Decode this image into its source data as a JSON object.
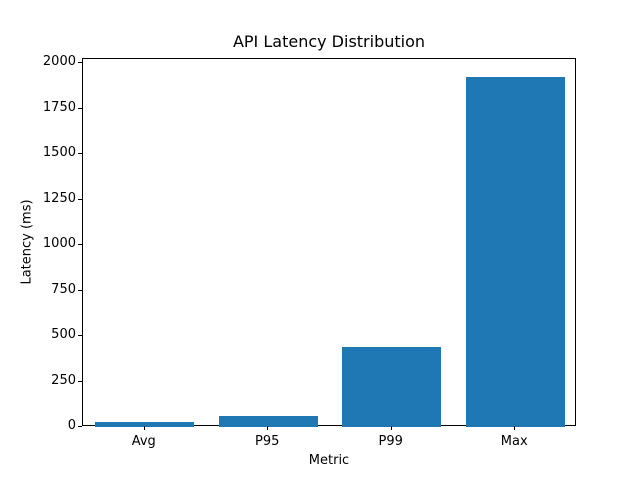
{
  "chart_data": {
    "type": "bar",
    "title": "API Latency Distribution",
    "xlabel": "Metric",
    "ylabel": "Latency (ms)",
    "categories": [
      "Avg",
      "P95",
      "P99",
      "Max"
    ],
    "values": [
      25,
      60,
      440,
      1925
    ],
    "ylim": [
      0,
      2022
    ],
    "yticks": [
      0,
      250,
      500,
      750,
      1000,
      1250,
      1500,
      1750,
      2000
    ],
    "bar_color": "#1f77b4",
    "bar_relative_width": 0.8,
    "grid": false,
    "legend": "none",
    "background_color": "#ffffff",
    "spine_color": "#000000",
    "text_color": "#000000"
  }
}
